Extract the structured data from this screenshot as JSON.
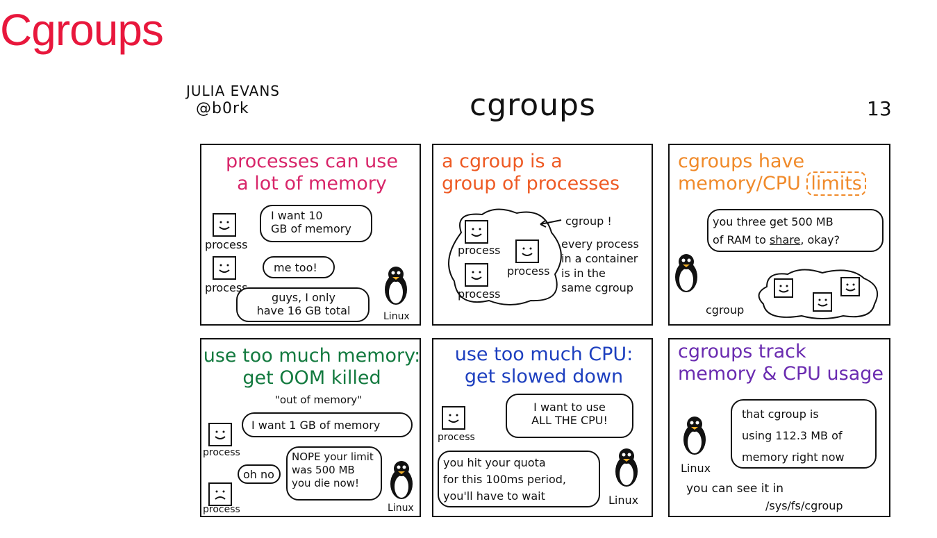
{
  "slide": {
    "title": "Cgroups"
  },
  "comic": {
    "author_name": "JULIA EVANS",
    "author_handle": "@b0rk",
    "title": "cgroups",
    "page_number": "13"
  },
  "panels": {
    "p1": {
      "title_line1": "processes can use",
      "title_line2": "a lot of memory",
      "process_label_1": "process",
      "process_label_2": "process",
      "bubble1_line1": "I want 10",
      "bubble1_line2": "GB of memory",
      "bubble2": "me too!",
      "bubble3_line1": "guys, I only",
      "bubble3_line2": "have 16 GB total",
      "linux_label": "Linux"
    },
    "p2": {
      "title_line1": "a cgroup is a",
      "title_line2": "group of processes",
      "process_label_1": "process",
      "process_label_2": "process",
      "process_label_3": "process",
      "cgroup_label": "cgroup !",
      "note_line1": "every process",
      "note_line2": "in a container",
      "note_line3": "is in the",
      "note_line4": "same cgroup"
    },
    "p3": {
      "title_line1": "cgroups have",
      "title_line2": "memory/CPU",
      "title_limits": "limits",
      "bubble_line1": "you three get 500 MB",
      "bubble_line2_pre": "of RAM to ",
      "bubble_line2_share": "share",
      "bubble_line2_post": ", okay?",
      "cgroup_label": "cgroup"
    },
    "p4": {
      "title_line1": "use too much memory:",
      "title_line2": "get OOM killed",
      "oom_note": "\"out of memory\"",
      "bubble1": "I want 1 GB of memory",
      "process_label_1": "process",
      "process_label_2": "process",
      "thought": "oh no",
      "bubble2_line1": "NOPE your limit",
      "bubble2_line2": "was 500 MB",
      "bubble2_line3": "you die now!",
      "linux_label": "Linux"
    },
    "p5": {
      "title_line1": "use too much CPU:",
      "title_line2": "get slowed down",
      "bubble1_line1": "I want to use",
      "bubble1_line2": "ALL THE CPU!",
      "process_label": "process",
      "bubble2_line1": "you hit your quota",
      "bubble2_line2": "for this 100ms period,",
      "bubble2_line3": "you'll have to wait",
      "linux_label": "Linux"
    },
    "p6": {
      "title_line1": "cgroups track",
      "title_line2": "memory & CPU usage",
      "bubble_line1": "that cgroup is",
      "bubble_line2": "using 112.3 MB of",
      "bubble_line3": "memory right now",
      "linux_label": "Linux",
      "note_line1": "you can see it in",
      "path": "/sys/fs/cgroup"
    }
  },
  "colors": {
    "slide_title": "#e8173c",
    "p1_title": "#d8266a",
    "p2_title": "#ee5a24",
    "p3_title": "#f08a2a",
    "p4_title": "#137a3f",
    "p5_title": "#1d3fbf",
    "p6_title": "#6a2bb0"
  }
}
